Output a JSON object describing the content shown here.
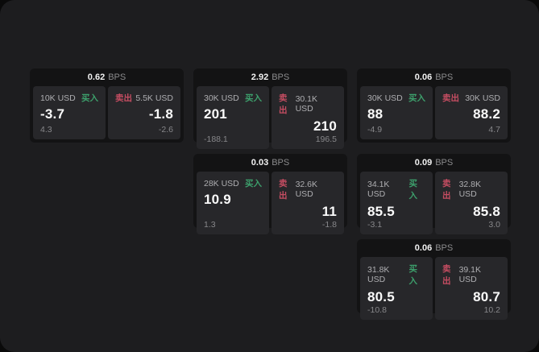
{
  "labels": {
    "bps_unit": "BPS",
    "buy": "买入",
    "sell": "卖出"
  },
  "colors": {
    "page_background": "#1d1d1f",
    "card_background": "#131314",
    "panel_background": "#27272a",
    "buy_accent": "#3da06c",
    "sell_accent": "#c64d62",
    "value_text": "#fafafa",
    "muted_text": "#87878a"
  },
  "cards": [
    {
      "bps": "0.62",
      "buy": {
        "amount": "10K USD",
        "price": "-3.7",
        "change": "4.3"
      },
      "sell": {
        "amount": "5.5K USD",
        "price": "-1.8",
        "change": "-2.6"
      }
    },
    {
      "bps": "2.92",
      "buy": {
        "amount": "30K USD",
        "price": "201",
        "change": "-188.1"
      },
      "sell": {
        "amount": "30.1K USD",
        "price": "210",
        "change": "196.5"
      }
    },
    {
      "bps": "0.06",
      "buy": {
        "amount": "30K USD",
        "price": "88",
        "change": "-4.9"
      },
      "sell": {
        "amount": "30K USD",
        "price": "88.2",
        "change": "4.7"
      }
    },
    {
      "bps": "0.03",
      "buy": {
        "amount": "28K USD",
        "price": "10.9",
        "change": "1.3"
      },
      "sell": {
        "amount": "32.6K USD",
        "price": "11",
        "change": "-1.8"
      }
    },
    {
      "bps": "0.09",
      "buy": {
        "amount": "34.1K USD",
        "price": "85.5",
        "change": "-3.1"
      },
      "sell": {
        "amount": "32.8K USD",
        "price": "85.8",
        "change": "3.0"
      }
    },
    {
      "bps": "0.06",
      "buy": {
        "amount": "31.8K USD",
        "price": "80.5",
        "change": "-10.8"
      },
      "sell": {
        "amount": "39.1K USD",
        "price": "80.7",
        "change": "10.2"
      }
    }
  ]
}
